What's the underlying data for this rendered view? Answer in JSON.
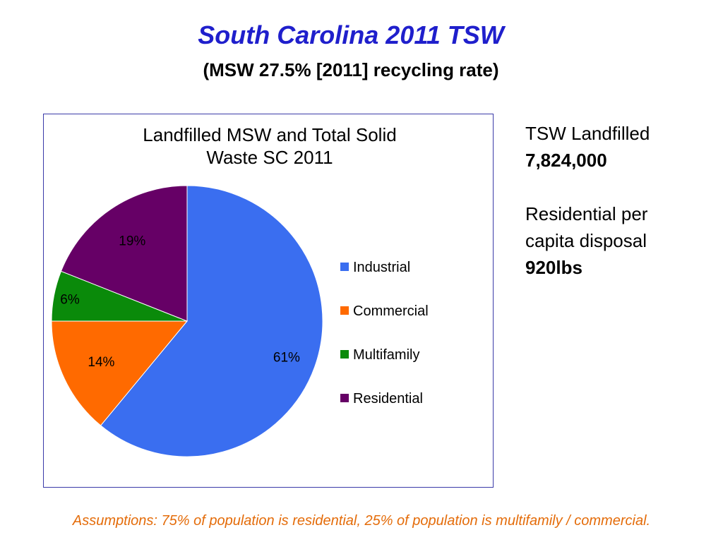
{
  "slide": {
    "title": "South Carolina 2011 TSW",
    "subtitle": "(MSW 27.5% [2011] recycling rate)"
  },
  "side_panel": {
    "tsw_label": "TSW Landfilled",
    "tsw_value": "7,824,000",
    "per_capita_line1": "Residential per",
    "per_capita_line2": "capita disposal",
    "per_capita_value": "920lbs"
  },
  "footnote": "Assumptions: 75% of population is residential, 25% of population is multifamily / commercial.",
  "chart_data": {
    "type": "pie",
    "title_lines": [
      "Landfilled MSW and Total Solid",
      "Waste SC 2011"
    ],
    "legend_position": "right",
    "categories": [
      "Industrial",
      "Commercial",
      "Multifamily",
      "Residential"
    ],
    "values": [
      61,
      14,
      6,
      19
    ],
    "labels": [
      "61%",
      "14%",
      "6%",
      "19%"
    ],
    "colors": [
      "#3a6ef0",
      "#ff6a00",
      "#0a8a0a",
      "#660066"
    ],
    "start": "12 o'clock, clockwise"
  }
}
